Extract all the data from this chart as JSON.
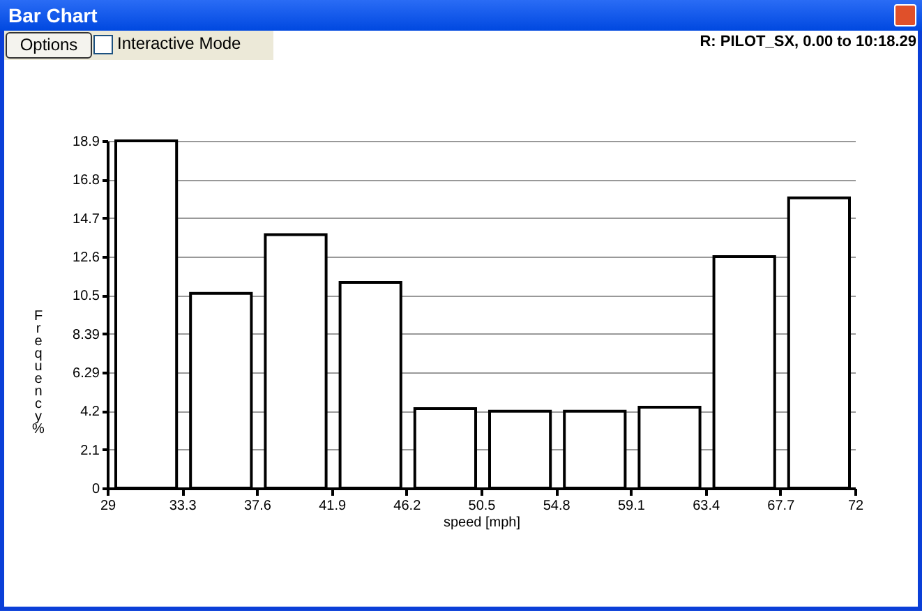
{
  "chart_data": {
    "type": "histogram",
    "title": "Bar Chart",
    "annotations": [
      "Options",
      "Interactive Mode",
      "R:  PILOT_SX, 0.00 to 10:18.29"
    ],
    "xlabel": "speed [mph]",
    "ylabel": "Frequency %",
    "bins": [
      29,
      33.3,
      37.6,
      41.9,
      46.2,
      50.5,
      54.8,
      59.1,
      63.4,
      67.7,
      72
    ],
    "values": [
      18.9,
      10.6,
      13.8,
      11.2,
      4.33,
      4.18,
      4.18,
      4.4,
      12.6,
      15.8
    ],
    "color": "#000000",
    "xlim": [
      29,
      72
    ],
    "xticks": [
      29,
      33.3,
      37.6,
      41.9,
      46.2,
      50.5,
      54.8,
      59.1,
      63.4,
      67.7,
      72
    ],
    "ylim": [
      0,
      18.9
    ],
    "yticks": [
      0,
      2.1,
      4.2,
      6.29,
      8.39,
      10.5,
      12.6,
      14.7,
      16.8,
      18.9
    ],
    "grid": "y"
  }
}
